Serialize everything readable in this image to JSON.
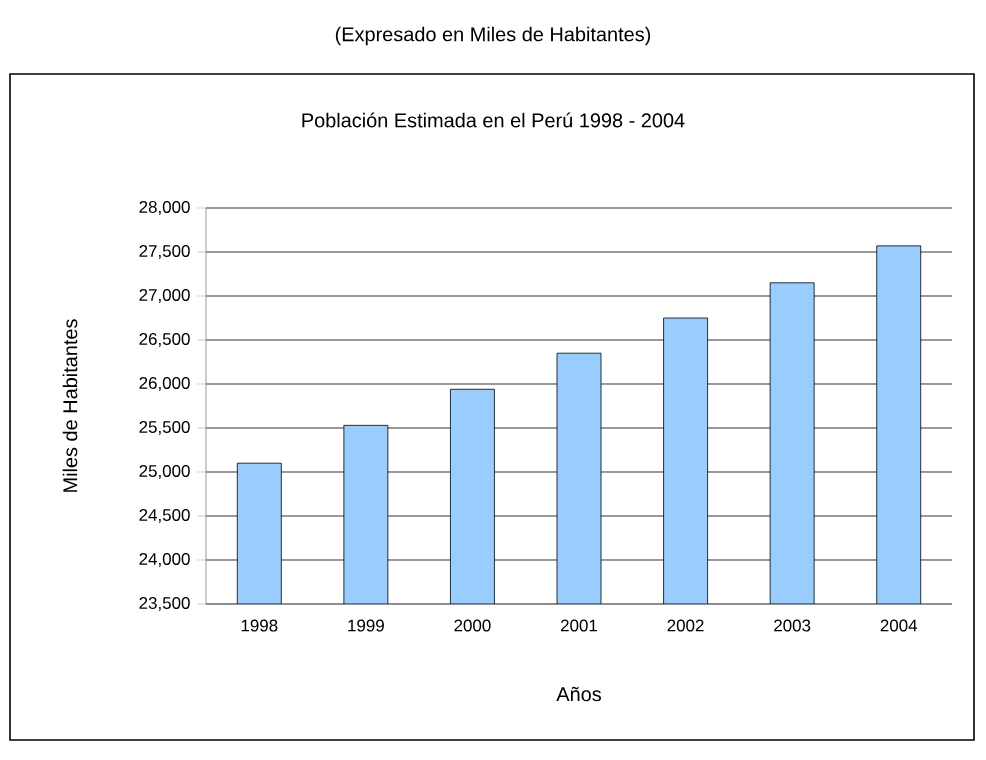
{
  "chart_data": {
    "type": "bar",
    "title": "Población Estimada en el Perú 1998 - 2004",
    "subtitle": "(Expresado en Miles de Habitantes)",
    "xlabel": "Años",
    "ylabel": "Miles de Habitantes",
    "categories": [
      "1998",
      "1999",
      "2000",
      "2001",
      "2002",
      "2003",
      "2004"
    ],
    "values": [
      25100,
      25530,
      25940,
      26350,
      26750,
      27150,
      27570
    ],
    "color": "#99ccff",
    "ylim": [
      23500,
      28000
    ],
    "yticks": [
      {
        "value": 23500,
        "label": "23,500"
      },
      {
        "value": 24000,
        "label": "24,000"
      },
      {
        "value": 24500,
        "label": "24,500"
      },
      {
        "value": 25000,
        "label": "25,000"
      },
      {
        "value": 25500,
        "label": "25,500"
      },
      {
        "value": 26000,
        "label": "26,000"
      },
      {
        "value": 26500,
        "label": "26,500"
      },
      {
        "value": 27000,
        "label": "27,000"
      },
      {
        "value": 27500,
        "label": "27,500"
      },
      {
        "value": 28000,
        "label": "28,000"
      }
    ],
    "grid": "y"
  }
}
